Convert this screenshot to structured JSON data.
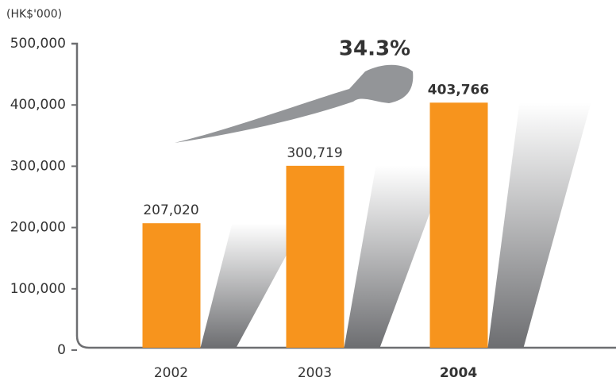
{
  "chart_data": {
    "type": "bar",
    "unit_label": "(HK$'000)",
    "annotation": "34.3%",
    "categories": [
      "2002",
      "2003",
      "2004"
    ],
    "values": [
      207020,
      300719,
      403766
    ],
    "value_labels": [
      "207,020",
      "300,719",
      "403,766"
    ],
    "color": "#f7941d",
    "highlight_index": 2,
    "ylim": [
      0,
      500000
    ],
    "yticks": [
      0,
      {
        "value": 100000,
        "label": "100,000"
      },
      {
        "value": 200000,
        "label": "200,000"
      },
      {
        "value": 300000,
        "label": "300,000"
      },
      {
        "value": 400000,
        "label": "400,000"
      },
      {
        "value": 500000,
        "label": "500,000"
      }
    ]
  }
}
